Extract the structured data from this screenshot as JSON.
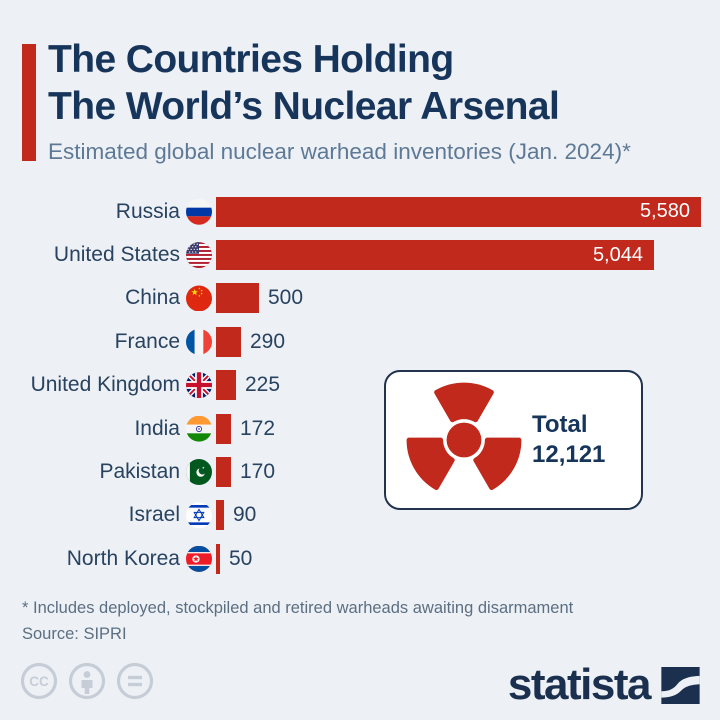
{
  "header": {
    "title_line1": "The Countries Holding",
    "title_line2": "The World’s Nuclear Arsenal",
    "subtitle": "Estimated global nuclear warhead inventories (Jan. 2024)*"
  },
  "chart_data": {
    "type": "bar",
    "orientation": "horizontal",
    "title": "The Countries Holding The World’s Nuclear Arsenal",
    "subtitle": "Estimated global nuclear warhead inventories (Jan. 2024)*",
    "categories": [
      "Russia",
      "United States",
      "China",
      "France",
      "United Kingdom",
      "India",
      "Pakistan",
      "Israel",
      "North Korea"
    ],
    "values": [
      5580,
      5044,
      500,
      290,
      225,
      172,
      170,
      90,
      50
    ],
    "value_labels": [
      "5,580",
      "5,044",
      "500",
      "290",
      "225",
      "172",
      "170",
      "90",
      "50"
    ],
    "flags": [
      "russia",
      "united-states",
      "china",
      "france",
      "united-kingdom",
      "india",
      "pakistan",
      "israel",
      "north-korea"
    ],
    "xlim": [
      0,
      5580
    ],
    "grid": false,
    "legend": false,
    "bar_color": "#c0291c"
  },
  "total_card": {
    "label": "Total",
    "value": "12,121",
    "icon": "radiation-trefoil-icon"
  },
  "footnote": "* Includes deployed, stockpiled and retired warheads awaiting disarmament",
  "source": "Source: SIPRI",
  "branding": {
    "logo_text": "statista",
    "license_icons": [
      "cc-icon",
      "attribution-person-icon",
      "no-derivatives-equals-icon"
    ]
  },
  "colors": {
    "background": "#edf1f6",
    "accent_red": "#c0291c",
    "title_navy": "#17355a",
    "label_navy": "#28425f",
    "subtitle_gray": "#5e7996",
    "text_gray": "#5c6e82",
    "logo_navy": "#1b2f4e",
    "license_gray": "#c6cdd6",
    "card_border": "#22334e",
    "bar_value_text": "#ffffff"
  }
}
